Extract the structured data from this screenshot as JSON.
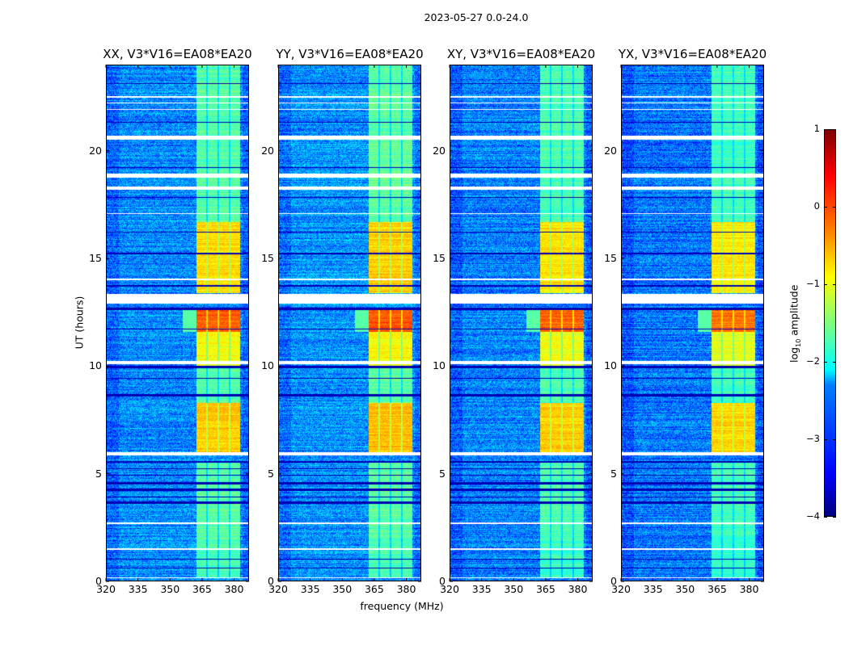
{
  "chart_data": {
    "type": "heatmap",
    "title": "2023-05-27 0.0-24.0",
    "xlabel": "frequency (MHz)",
    "ylabel": "UT (hours)",
    "xlim": [
      320,
      387
    ],
    "ylim": [
      0,
      24
    ],
    "xticks": [
      "320",
      "335",
      "350",
      "365",
      "380"
    ],
    "xtick_values": [
      320,
      335,
      350,
      365,
      380
    ],
    "yticks": [
      "0",
      "5",
      "10",
      "15",
      "20"
    ],
    "ytick_values": [
      0,
      5,
      10,
      15,
      20
    ],
    "panels": [
      {
        "title": "XX, V3*V16=EA08*EA20",
        "level_offset": 0.0
      },
      {
        "title": "YY, V3*V16=EA08*EA20",
        "level_offset": 0.05
      },
      {
        "title": "XY, V3*V16=EA08*EA20",
        "level_offset": -0.05
      },
      {
        "title": "YX, V3*V16=EA08*EA20",
        "level_offset": -0.1
      }
    ],
    "bright_subbands_mhz": [
      [
        362.5,
        367
      ],
      [
        367.8,
        372.2
      ],
      [
        373,
        377.5
      ],
      [
        378.3,
        382.7
      ]
    ],
    "bright_time_ranges_hours": [
      {
        "range": [
          0.2,
          2.0
        ],
        "log_amp": -1.8
      },
      {
        "range": [
          2.0,
          5.6
        ],
        "log_amp": -1.7
      },
      {
        "range": [
          5.9,
          8.3
        ],
        "log_amp": -0.6
      },
      {
        "range": [
          8.3,
          10.0
        ],
        "log_amp": -1.7
      },
      {
        "range": [
          10.0,
          11.6
        ],
        "log_amp": -0.9
      },
      {
        "range": [
          11.6,
          12.6
        ],
        "log_amp": -0.1
      },
      {
        "range": [
          13.4,
          16.7
        ],
        "log_amp": -0.7
      },
      {
        "range": [
          16.7,
          24.0
        ],
        "log_amp": -1.7
      }
    ],
    "background_log_amp": -2.7,
    "flagged_hours": [
      [
        22.45,
        22.55
      ],
      [
        22.2,
        22.25
      ],
      [
        21.9,
        21.95
      ],
      [
        20.5,
        20.7
      ],
      [
        18.75,
        18.95
      ],
      [
        18.2,
        18.32
      ],
      [
        17.05,
        17.1
      ],
      [
        14.0,
        14.05
      ],
      [
        12.9,
        13.35
      ],
      [
        10.1,
        10.25
      ],
      [
        5.85,
        6.0
      ],
      [
        2.65,
        2.72
      ],
      [
        1.45,
        1.52
      ],
      [
        0.15,
        0.2
      ]
    ],
    "dark_hours": [
      [
        23.1,
        23.15
      ],
      [
        21.3,
        21.35
      ],
      [
        19.2,
        19.25
      ],
      [
        17.8,
        17.85
      ],
      [
        16.2,
        16.25
      ],
      [
        15.2,
        15.25
      ],
      [
        13.7,
        13.75
      ],
      [
        12.6,
        12.7
      ],
      [
        11.7,
        11.75
      ],
      [
        9.9,
        10.0
      ],
      [
        9.4,
        9.45
      ],
      [
        8.6,
        8.7
      ],
      [
        5.5,
        5.6
      ],
      [
        5.2,
        5.25
      ],
      [
        4.9,
        4.95
      ],
      [
        4.5,
        4.6
      ],
      [
        4.2,
        4.3
      ],
      [
        3.9,
        3.95
      ],
      [
        3.6,
        3.7
      ],
      [
        1.0,
        1.05
      ],
      [
        0.6,
        0.65
      ]
    ],
    "colorbar": {
      "label": "log10 amplitude",
      "label_main": "log",
      "label_sub": "10",
      "label_rest": " amplitude",
      "range": [
        -4,
        1
      ],
      "ticks": [
        "1",
        "0",
        "−1",
        "−2",
        "−3",
        "−4"
      ],
      "tick_values": [
        1,
        0,
        -1,
        -2,
        -3,
        -4
      ],
      "colormap": "jet"
    }
  }
}
